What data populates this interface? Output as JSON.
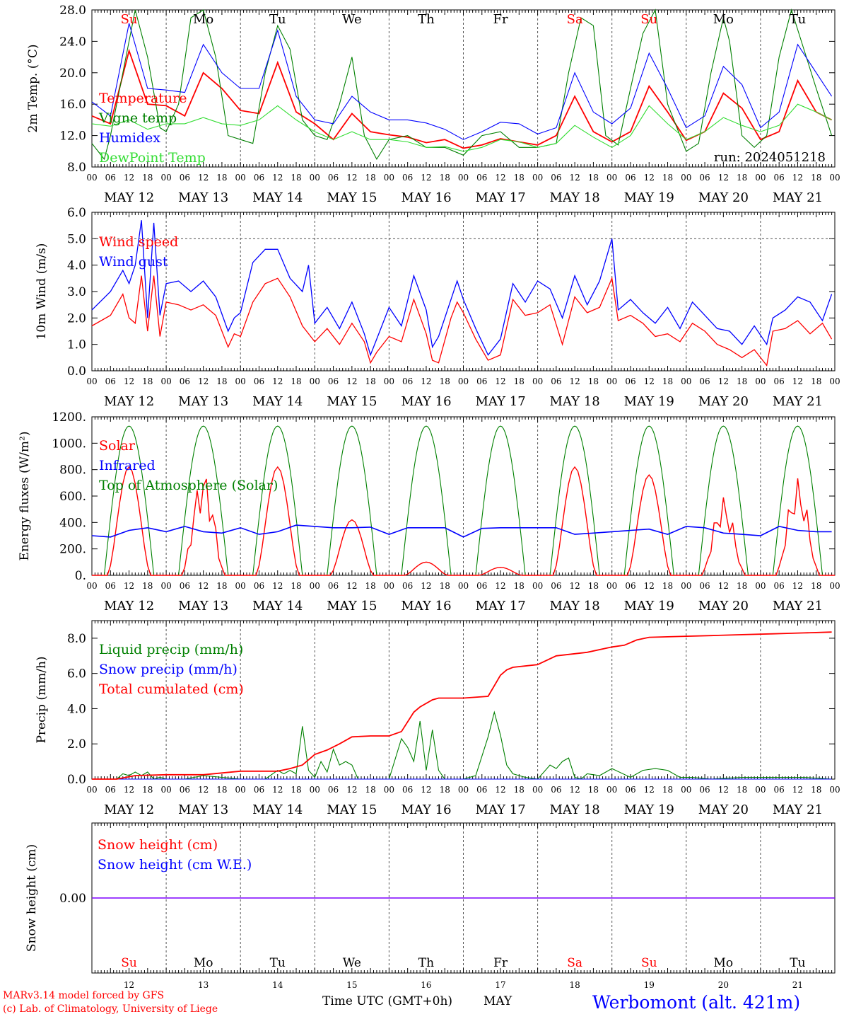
{
  "station": "Werbomont (alt. 421m)",
  "footer_left": [
    "MARv3.14 model forced by GFS",
    "(c) Lab. of Climatology, University of Liege"
  ],
  "time_axis_label": "Time UTC (GMT+0h)",
  "month_label": "MAY",
  "run_label": "run: 2024051218",
  "hour_ticks": [
    "00",
    "06",
    "12",
    "18"
  ],
  "dates": [
    "MAY 12",
    "MAY 13",
    "MAY 14",
    "MAY 15",
    "MAY 16",
    "MAY 17",
    "MAY 18",
    "MAY 19",
    "MAY 20",
    "MAY 21"
  ],
  "day_numbers": [
    "12",
    "13",
    "14",
    "15",
    "16",
    "17",
    "18",
    "19",
    "20",
    "21"
  ],
  "weekdays": [
    "Su",
    "Mo",
    "Tu",
    "We",
    "Th",
    "Fr",
    "Sa",
    "Su",
    "Mo",
    "Tu"
  ],
  "weekday_colors": [
    "#ff0000",
    "#000000",
    "#000000",
    "#000000",
    "#000000",
    "#000000",
    "#ff0000",
    "#ff0000",
    "#000000",
    "#000000"
  ],
  "colors": {
    "red": "#ff0000",
    "darkgreen": "#008000",
    "blue": "#0000ff",
    "lightgreen": "#33dd33",
    "purple": "#7f00ff"
  },
  "chart_data": [
    {
      "type": "line",
      "ylabel": "2m Temp. (°C)",
      "ylim": [
        8,
        28
      ],
      "yticks": [
        "8.0",
        "12.0",
        "16.0",
        "20.0",
        "24.0",
        "28.0"
      ],
      "x_units": "hours since 2024-05-12 00 UTC",
      "legend": [
        "Temperature",
        "Vigne temp",
        "Humidex",
        "DewPoint Temp"
      ],
      "series": [
        {
          "name": "Temperature",
          "color": "red",
          "x": [
            0,
            6,
            12,
            18,
            24,
            30,
            36,
            42,
            48,
            54,
            60,
            66,
            72,
            78,
            84,
            90,
            96,
            102,
            108,
            114,
            120,
            126,
            132,
            138,
            144,
            150,
            156,
            162,
            168,
            174,
            180,
            186,
            192,
            198,
            204,
            210,
            216,
            222,
            228,
            234,
            239
          ],
          "y": [
            14.5,
            13.5,
            22.8,
            16,
            15.8,
            14.5,
            20,
            18,
            15.2,
            14.8,
            21.3,
            15,
            13.5,
            11.5,
            14.8,
            12.5,
            12.1,
            11.8,
            11.1,
            11.5,
            10.4,
            10.8,
            11.6,
            11.2,
            10.8,
            12,
            17,
            12.5,
            11.2,
            12.5,
            18.3,
            15,
            11.4,
            12.5,
            17.4,
            15.5,
            11.5,
            12.5,
            19,
            15,
            14
          ]
        },
        {
          "name": "Vigne temp",
          "color": "darkgreen",
          "x": [
            0,
            4,
            6,
            10,
            14,
            18,
            22,
            24,
            28,
            32,
            36,
            40,
            44,
            48,
            52,
            56,
            60,
            64,
            68,
            72,
            76,
            80,
            84,
            88,
            92,
            96,
            102,
            108,
            114,
            120,
            126,
            132,
            138,
            144,
            150,
            154,
            158,
            162,
            166,
            170,
            174,
            178,
            182,
            186,
            192,
            196,
            200,
            204,
            206,
            210,
            214,
            218,
            222,
            226,
            230,
            234,
            239
          ],
          "y": [
            11,
            9,
            12,
            20,
            31,
            22,
            13,
            12.5,
            16,
            27,
            30,
            22,
            12,
            11.5,
            11,
            20,
            26,
            23,
            14,
            12,
            11.5,
            16,
            22,
            12,
            9,
            11.5,
            12,
            10.5,
            10.5,
            9.5,
            12,
            12.5,
            10.5,
            10.5,
            11,
            20,
            27,
            26,
            12,
            10.8,
            18,
            25,
            28,
            16,
            10,
            11,
            20,
            27,
            24,
            12,
            10.5,
            12,
            22,
            28,
            23,
            18,
            12
          ]
        },
        {
          "name": "Humidex",
          "color": "blue",
          "x": [
            0,
            6,
            12,
            18,
            24,
            30,
            36,
            42,
            48,
            54,
            60,
            66,
            72,
            78,
            84,
            90,
            96,
            102,
            108,
            114,
            120,
            126,
            132,
            138,
            144,
            150,
            156,
            162,
            168,
            174,
            180,
            186,
            192,
            198,
            204,
            210,
            216,
            222,
            228,
            234,
            239
          ],
          "y": [
            16.3,
            14.5,
            26.3,
            18,
            17.8,
            17.5,
            23.6,
            20,
            18,
            18,
            25.4,
            17,
            14,
            13.5,
            17,
            15,
            14,
            14,
            13.6,
            12.8,
            11.5,
            12.5,
            13.7,
            13.5,
            12.2,
            13,
            20,
            15,
            13.5,
            15.5,
            22.5,
            18,
            13,
            14.5,
            20.8,
            18.5,
            13,
            15,
            23.6,
            20,
            17
          ]
        },
        {
          "name": "DewPoint Temp",
          "color": "lightgreen",
          "x": [
            0,
            6,
            12,
            18,
            24,
            30,
            36,
            42,
            48,
            54,
            60,
            66,
            72,
            78,
            84,
            90,
            96,
            102,
            108,
            114,
            120,
            126,
            132,
            138,
            144,
            150,
            156,
            162,
            168,
            174,
            180,
            186,
            192,
            198,
            204,
            210,
            216,
            222,
            228,
            234,
            239
          ],
          "y": [
            13.5,
            13.2,
            14,
            12.8,
            13.5,
            13.5,
            14.3,
            13.5,
            13.3,
            14,
            15.8,
            14,
            12.5,
            11.5,
            12.5,
            11.5,
            11.5,
            11.2,
            10.5,
            10.6,
            10,
            10.5,
            11.5,
            11.2,
            10.5,
            11,
            13.3,
            11.8,
            10.5,
            12,
            15.8,
            13.5,
            11.5,
            12.5,
            14.3,
            13.3,
            12.5,
            13.3,
            16,
            15,
            14
          ]
        }
      ]
    },
    {
      "type": "line",
      "ylabel": "10m Wind (m/s)",
      "ylim": [
        0,
        6
      ],
      "yticks": [
        "0.0",
        "1.0",
        "2.0",
        "3.0",
        "4.0",
        "5.0",
        "6.0"
      ],
      "legend": [
        "Wind speed",
        "Wind gust"
      ],
      "series": [
        {
          "name": "Wind speed",
          "color": "red",
          "x": [
            0,
            6,
            10,
            12,
            14,
            16,
            18,
            20,
            22,
            24,
            28,
            32,
            36,
            40,
            44,
            46,
            48,
            52,
            56,
            60,
            64,
            68,
            72,
            76,
            80,
            84,
            88,
            90,
            92,
            96,
            100,
            104,
            108,
            110,
            112,
            116,
            118,
            120,
            124,
            128,
            132,
            136,
            140,
            144,
            148,
            152,
            156,
            160,
            164,
            168,
            170,
            174,
            178,
            182,
            186,
            190,
            194,
            198,
            202,
            206,
            210,
            214,
            218,
            220,
            224,
            228,
            232,
            236,
            239
          ],
          "y": [
            1.7,
            2.1,
            2.9,
            2,
            1.8,
            3.6,
            1.5,
            3.6,
            1.3,
            2.6,
            2.5,
            2.3,
            2.5,
            2.1,
            0.9,
            1.4,
            1.3,
            2.6,
            3.3,
            3.5,
            2.8,
            1.7,
            1.1,
            1.6,
            1,
            1.8,
            1.1,
            0.3,
            0.7,
            1.3,
            1.1,
            2.7,
            1.4,
            0.4,
            0.3,
            2,
            2.6,
            2.2,
            1.2,
            0.4,
            0.6,
            2.7,
            2.1,
            2.2,
            2.5,
            1,
            2.8,
            2.2,
            2.4,
            3.5,
            1.9,
            2.1,
            1.8,
            1.3,
            1.4,
            1.1,
            1.8,
            1.5,
            1,
            0.8,
            0.5,
            0.8,
            0.2,
            1.5,
            1.6,
            1.9,
            1.4,
            1.8,
            1.2
          ]
        },
        {
          "name": "Wind gust",
          "color": "blue",
          "x": [
            0,
            6,
            10,
            12,
            14,
            16,
            18,
            20,
            22,
            24,
            28,
            32,
            36,
            40,
            44,
            46,
            48,
            52,
            56,
            60,
            64,
            68,
            70,
            72,
            76,
            80,
            84,
            88,
            90,
            92,
            96,
            100,
            104,
            108,
            110,
            112,
            116,
            118,
            120,
            124,
            128,
            132,
            136,
            140,
            144,
            148,
            152,
            156,
            160,
            164,
            168,
            170,
            174,
            178,
            182,
            186,
            190,
            194,
            198,
            202,
            206,
            210,
            214,
            218,
            220,
            224,
            228,
            232,
            236,
            239
          ],
          "y": [
            2.3,
            3,
            3.8,
            3.3,
            4,
            5.7,
            2,
            5.6,
            2.1,
            3.3,
            3.4,
            3,
            3.4,
            2.8,
            1.5,
            2,
            2.2,
            4.1,
            4.6,
            4.6,
            3.5,
            3,
            4,
            1.8,
            2.4,
            1.6,
            2.6,
            1.4,
            0.6,
            1.2,
            2.4,
            1.7,
            3.6,
            2.3,
            0.9,
            1.3,
            2.7,
            3.4,
            2.7,
            1.6,
            0.6,
            1.2,
            3.3,
            2.6,
            3.4,
            3.1,
            2,
            3.6,
            2.5,
            3.4,
            5,
            2.3,
            2.7,
            2.2,
            1.8,
            2.4,
            1.6,
            2.6,
            2.1,
            1.6,
            1.5,
            1,
            1.7,
            1,
            2,
            2.3,
            2.8,
            2.6,
            1.9,
            2.9
          ]
        }
      ]
    },
    {
      "type": "line",
      "ylabel": "Energy fluxes (W/m²)",
      "ylim": [
        0,
        1200
      ],
      "yticks": [
        "0.",
        "200.",
        "400.",
        "600.",
        "800.",
        "1000.",
        "1200."
      ],
      "legend": [
        "Solar",
        "Infrared",
        "Top of Atmosphere (Solar)"
      ],
      "toa_peak": 1130,
      "infrared_y": [
        300,
        290,
        340,
        360,
        330,
        370,
        330,
        320,
        360,
        310,
        330,
        380,
        370,
        360,
        360,
        365,
        310,
        360,
        360,
        360,
        290,
        355,
        360,
        360,
        360,
        360,
        310,
        320,
        330,
        340,
        350,
        310,
        370,
        360,
        320,
        310,
        300,
        370,
        340,
        330
      ],
      "solar_peaks": [
        820,
        800,
        820,
        420,
        100,
        60,
        820,
        760,
        600,
        740
      ],
      "series": [
        {
          "name": "Solar",
          "color": "red"
        },
        {
          "name": "Infrared",
          "color": "blue"
        },
        {
          "name": "Top of Atmosphere (Solar)",
          "color": "darkgreen"
        }
      ]
    },
    {
      "type": "line",
      "ylabel": "Precip (mm/h)",
      "ylim": [
        0,
        9
      ],
      "yticks": [
        "0.0",
        "2.0",
        "4.0",
        "6.0",
        "8.0"
      ],
      "legend": [
        "Liquid precip (mm/h)",
        "Snow precip (mm/h)",
        "Total cumulated (cm)"
      ],
      "series": [
        {
          "name": "Liquid precip (mm/h)",
          "color": "darkgreen",
          "x": [
            0,
            8,
            10,
            12,
            14,
            16,
            18,
            20,
            22,
            24,
            30,
            36,
            42,
            48,
            52,
            56,
            60,
            62,
            64,
            66,
            68,
            70,
            72,
            74,
            76,
            78,
            80,
            82,
            84,
            86,
            90,
            96,
            100,
            102,
            104,
            106,
            108,
            110,
            112,
            114,
            116,
            118,
            120,
            124,
            126,
            128,
            130,
            132,
            134,
            136,
            138,
            140,
            144,
            148,
            150,
            152,
            154,
            156,
            158,
            160,
            164,
            168,
            174,
            178,
            182,
            186,
            190,
            194,
            200,
            210,
            220,
            230,
            239
          ],
          "y": [
            0,
            0,
            0.3,
            0.2,
            0.4,
            0.2,
            0.4,
            0,
            0.1,
            0,
            0,
            0.2,
            0.1,
            0,
            0,
            0,
            0.5,
            0.3,
            0.5,
            0.3,
            3,
            0.5,
            0.1,
            1,
            0.4,
            1.7,
            0.8,
            1,
            0.8,
            0,
            0,
            0,
            2.3,
            1.8,
            1,
            3.3,
            0.5,
            2.8,
            0.5,
            0,
            0,
            0,
            0,
            0.2,
            1.3,
            2.4,
            3.8,
            2.5,
            0.8,
            0.3,
            0.2,
            0.1,
            0,
            0.8,
            0.6,
            1,
            1.2,
            0.1,
            0,
            0.3,
            0.2,
            0.6,
            0.1,
            0.5,
            0.6,
            0.5,
            0.1,
            0.1,
            0,
            0.1,
            0.1,
            0.1,
            0
          ]
        },
        {
          "name": "Snow precip (mm/h)",
          "color": "blue",
          "x": [
            0,
            239
          ],
          "y": [
            0,
            0
          ]
        },
        {
          "name": "Total cumulated (cm)",
          "color": "red",
          "x": [
            0,
            8,
            14,
            24,
            36,
            42,
            48,
            60,
            64,
            68,
            72,
            76,
            80,
            84,
            90,
            96,
            100,
            104,
            106,
            110,
            112,
            120,
            128,
            130,
            132,
            134,
            136,
            144,
            150,
            160,
            168,
            172,
            176,
            180,
            190,
            200,
            210,
            220,
            230,
            239
          ],
          "y": [
            0,
            0,
            0.2,
            0.25,
            0.25,
            0.35,
            0.45,
            0.45,
            0.6,
            0.8,
            1.4,
            1.65,
            2.0,
            2.4,
            2.45,
            2.45,
            2.7,
            3.8,
            4.1,
            4.5,
            4.6,
            4.6,
            4.7,
            5.3,
            5.9,
            6.2,
            6.35,
            6.5,
            7.0,
            7.2,
            7.5,
            7.6,
            7.9,
            8.05,
            8.1,
            8.15,
            8.2,
            8.25,
            8.3,
            8.35
          ]
        }
      ]
    },
    {
      "type": "line",
      "ylabel": "Snow height (cm)",
      "ylim": [
        -1,
        1
      ],
      "yticks": [
        "0.00"
      ],
      "legend": [
        "Snow height (cm)",
        "Snow height (cm W.E.)"
      ],
      "series": [
        {
          "name": "Snow height (cm)",
          "color": "red",
          "x": [
            0,
            239
          ],
          "y": [
            0,
            0
          ]
        },
        {
          "name": "Snow height (cm W.E.)",
          "color": "blue",
          "x": [
            0,
            239
          ],
          "y": [
            0,
            0
          ]
        }
      ]
    }
  ]
}
